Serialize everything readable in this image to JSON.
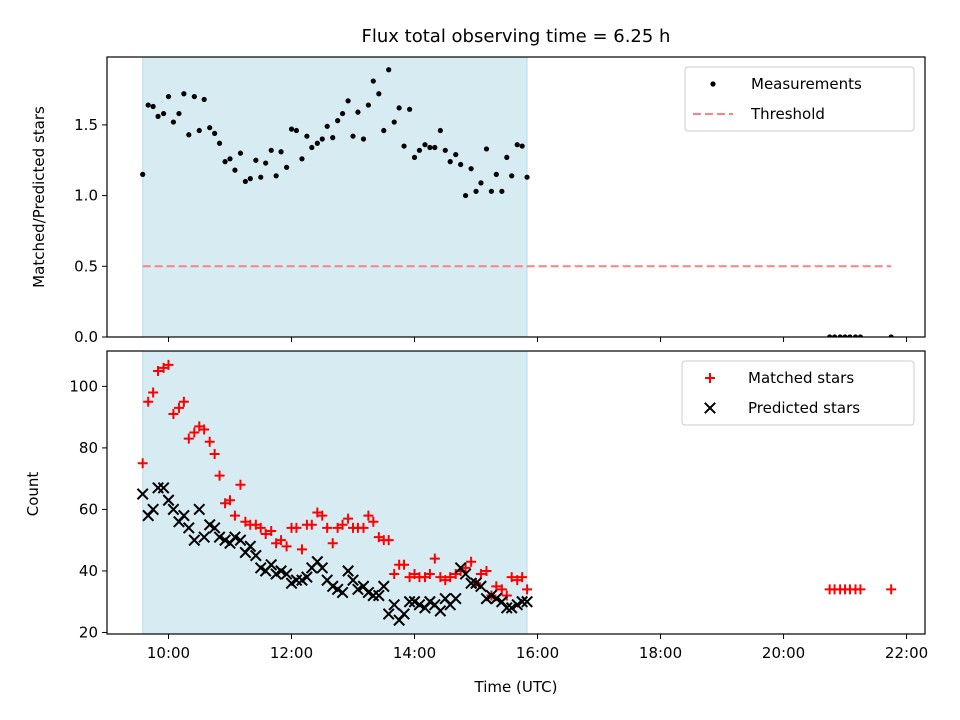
{
  "chart_data": [
    {
      "type": "scatter",
      "title": "Flux total observing time = 6.25 h",
      "xlabel": "",
      "ylabel": "Matched/Predicted stars",
      "xlim": [
        9.0,
        22.3
      ],
      "ylim": [
        0.0,
        1.98
      ],
      "yticks": [
        0.0,
        0.5,
        1.0,
        1.5
      ],
      "ytick_labels": [
        "0.0",
        "0.5",
        "1.0",
        "1.5"
      ],
      "xticks": [
        10,
        12,
        14,
        16,
        18,
        20,
        22
      ],
      "shaded_span": {
        "x0": 9.58,
        "x1": 15.83,
        "color": "#add8e6",
        "alpha": 0.5
      },
      "legend": {
        "position": "upper right",
        "entries": [
          "Measurements",
          "Threshold"
        ]
      },
      "series": [
        {
          "name": "Measurements",
          "marker": "dot",
          "color": "#000000",
          "x": [
            9.58,
            9.67,
            9.75,
            9.83,
            9.92,
            10.0,
            10.08,
            10.17,
            10.25,
            10.33,
            10.42,
            10.5,
            10.58,
            10.67,
            10.75,
            10.83,
            10.92,
            11.0,
            11.08,
            11.17,
            11.25,
            11.33,
            11.42,
            11.5,
            11.58,
            11.67,
            11.75,
            11.83,
            11.92,
            12.0,
            12.08,
            12.17,
            12.25,
            12.33,
            12.42,
            12.5,
            12.58,
            12.67,
            12.75,
            12.83,
            12.92,
            13.0,
            13.08,
            13.17,
            13.25,
            13.33,
            13.42,
            13.5,
            13.58,
            13.67,
            13.75,
            13.83,
            13.92,
            14.0,
            14.08,
            14.17,
            14.25,
            14.33,
            14.42,
            14.5,
            14.58,
            14.67,
            14.75,
            14.83,
            14.92,
            15.0,
            15.08,
            15.17,
            15.25,
            15.33,
            15.42,
            15.5,
            15.58,
            15.67,
            15.75,
            15.83,
            20.75,
            20.83,
            20.92,
            21.0,
            21.08,
            21.17,
            21.25,
            21.75
          ],
          "y": [
            1.15,
            1.64,
            1.63,
            1.56,
            1.58,
            1.7,
            1.52,
            1.58,
            1.72,
            1.43,
            1.7,
            1.46,
            1.68,
            1.48,
            1.44,
            1.37,
            1.24,
            1.26,
            1.18,
            1.3,
            1.1,
            1.12,
            1.25,
            1.13,
            1.23,
            1.32,
            1.14,
            1.31,
            1.2,
            1.47,
            1.46,
            1.26,
            1.42,
            1.34,
            1.37,
            1.4,
            1.49,
            1.41,
            1.53,
            1.58,
            1.67,
            1.42,
            1.59,
            1.4,
            1.64,
            1.81,
            1.72,
            1.46,
            1.89,
            1.52,
            1.62,
            1.35,
            1.61,
            1.27,
            1.32,
            1.36,
            1.34,
            1.34,
            1.46,
            1.32,
            1.24,
            1.29,
            1.22,
            1.0,
            1.19,
            1.03,
            1.09,
            1.33,
            1.03,
            1.15,
            1.03,
            1.27,
            1.14,
            1.36,
            1.35,
            1.13,
            0.0,
            0.0,
            0.0,
            0.0,
            0.0,
            0.0,
            0.0,
            0.0
          ]
        },
        {
          "name": "Threshold",
          "style": "dashed",
          "color": "#ff8080",
          "x": [
            9.58,
            21.75
          ],
          "y": [
            0.5,
            0.5
          ]
        }
      ]
    },
    {
      "type": "scatter",
      "title": "",
      "xlabel": "Time (UTC)",
      "ylabel": "Count",
      "xlim": [
        9.0,
        22.3
      ],
      "ylim": [
        19.5,
        111.5
      ],
      "yticks": [
        20,
        40,
        60,
        80,
        100
      ],
      "ytick_labels": [
        "20",
        "40",
        "60",
        "80",
        "100"
      ],
      "xticks": [
        10,
        12,
        14,
        16,
        18,
        20,
        22
      ],
      "xtick_labels": [
        "10:00",
        "12:00",
        "14:00",
        "16:00",
        "18:00",
        "20:00",
        "22:00"
      ],
      "shaded_span": {
        "x0": 9.58,
        "x1": 15.83,
        "color": "#add8e6",
        "alpha": 0.5
      },
      "legend": {
        "position": "upper right",
        "entries": [
          "Matched stars",
          "Predicted stars"
        ]
      },
      "series": [
        {
          "name": "Matched stars",
          "marker": "plus",
          "color": "#ff0000",
          "x": [
            9.58,
            9.67,
            9.75,
            9.83,
            9.92,
            10.0,
            10.08,
            10.17,
            10.25,
            10.33,
            10.42,
            10.5,
            10.58,
            10.67,
            10.75,
            10.83,
            10.92,
            11.0,
            11.08,
            11.17,
            11.25,
            11.33,
            11.42,
            11.5,
            11.58,
            11.67,
            11.75,
            11.83,
            11.92,
            12.0,
            12.08,
            12.17,
            12.25,
            12.33,
            12.42,
            12.5,
            12.58,
            12.67,
            12.75,
            12.83,
            12.92,
            13.0,
            13.08,
            13.17,
            13.25,
            13.33,
            13.42,
            13.5,
            13.58,
            13.67,
            13.75,
            13.83,
            13.92,
            14.0,
            14.08,
            14.17,
            14.25,
            14.33,
            14.42,
            14.5,
            14.58,
            14.67,
            14.75,
            14.83,
            14.92,
            15.0,
            15.08,
            15.17,
            15.25,
            15.33,
            15.42,
            15.5,
            15.58,
            15.67,
            15.75,
            15.83,
            20.75,
            20.83,
            20.92,
            21.0,
            21.08,
            21.17,
            21.25,
            21.75
          ],
          "y": [
            75,
            95,
            98,
            105,
            106,
            107,
            91,
            93,
            95,
            83,
            85,
            87,
            86,
            82,
            78,
            71,
            62,
            63,
            58,
            68,
            56,
            55,
            55,
            54,
            52,
            53,
            49,
            50,
            48,
            54,
            54,
            47,
            55,
            55,
            59,
            58,
            54,
            49,
            54,
            55,
            57,
            54,
            54,
            54,
            58,
            56,
            51,
            50,
            50,
            39,
            42,
            42,
            38,
            39,
            38,
            38,
            39,
            44,
            38,
            37,
            38,
            39,
            40,
            41,
            43,
            36,
            39,
            40,
            32,
            35,
            34,
            32,
            38,
            37,
            38,
            34,
            34,
            34,
            34,
            34,
            34,
            34,
            34,
            34
          ]
        },
        {
          "name": "Predicted stars",
          "marker": "x",
          "color": "#000000",
          "x": [
            9.58,
            9.67,
            9.75,
            9.83,
            9.92,
            10.0,
            10.08,
            10.17,
            10.25,
            10.33,
            10.42,
            10.5,
            10.58,
            10.67,
            10.75,
            10.83,
            10.92,
            11.0,
            11.08,
            11.17,
            11.25,
            11.33,
            11.42,
            11.5,
            11.58,
            11.67,
            11.75,
            11.83,
            11.92,
            12.0,
            12.08,
            12.17,
            12.25,
            12.33,
            12.42,
            12.5,
            12.58,
            12.67,
            12.75,
            12.83,
            12.92,
            13.0,
            13.08,
            13.17,
            13.25,
            13.33,
            13.42,
            13.5,
            13.58,
            13.67,
            13.75,
            13.83,
            13.92,
            14.0,
            14.08,
            14.17,
            14.25,
            14.33,
            14.42,
            14.5,
            14.58,
            14.67,
            14.75,
            14.83,
            14.92,
            15.0,
            15.08,
            15.17,
            15.25,
            15.33,
            15.42,
            15.5,
            15.58,
            15.67,
            15.75,
            15.83
          ],
          "y": [
            65,
            58,
            60,
            67,
            67,
            63,
            60,
            56,
            58,
            54,
            50,
            60,
            51,
            55,
            54,
            51,
            50,
            49,
            51,
            50,
            46,
            48,
            45,
            41,
            40,
            42,
            39,
            40,
            39,
            36,
            37,
            37,
            38,
            41,
            43,
            41,
            37,
            35,
            34,
            33,
            40,
            37,
            34,
            35,
            33,
            32,
            32,
            35,
            26,
            29,
            24,
            26,
            30,
            30,
            29,
            28,
            30,
            29,
            27,
            31,
            29,
            31,
            41,
            39,
            36,
            36,
            35,
            31,
            32,
            31,
            30,
            28,
            28,
            29,
            30,
            30
          ]
        }
      ]
    }
  ]
}
